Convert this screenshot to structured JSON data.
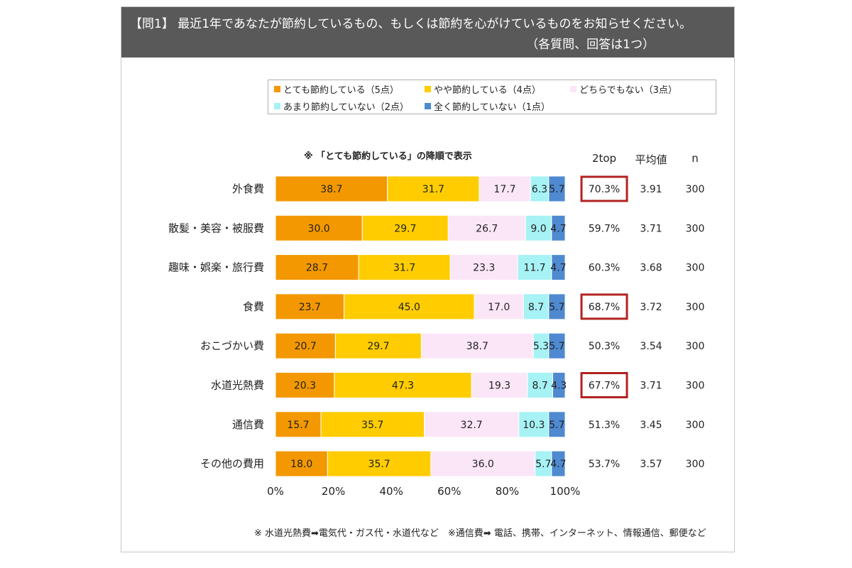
{
  "header": {
    "title_line1": "【問1】 最近1年であなたが節約しているもの、もしくは節約を心がけているものをお知らせください。",
    "title_line2": "（各質問、回答は1つ）"
  },
  "sort_note": "※ 「とても節約している」の降順で表示",
  "columns": {
    "two_top": "2top",
    "average": "平均値",
    "n": "n"
  },
  "footnote": "※ 水道光熱費➡電気代・ガス代・水道代など　※通信費➡ 電話、携帯、インターネット、情報通信、郵便など",
  "colors": {
    "s5": "#f39800",
    "s4": "#ffcc00",
    "s3": "#fbe6f7",
    "s2": "#a6f2f5",
    "s1": "#4f8ad1",
    "highlight_box": "#b22222"
  },
  "chart_data": {
    "type": "bar",
    "orientation": "horizontal",
    "stacked": "percent",
    "categories": [
      "外食費",
      "散髪・美容・被服費",
      "趣味・娯楽・旅行費",
      "食費",
      "おこづかい費",
      "水道光熱費",
      "通信費",
      "その他の費用"
    ],
    "series": [
      {
        "name": "とても節約している（5点）",
        "values": [
          38.7,
          30.0,
          28.7,
          23.7,
          20.7,
          20.3,
          15.7,
          18.0
        ],
        "labels": [
          "38.7",
          "30.0",
          "28.7",
          "23.7",
          "20.7",
          "20.3",
          "15.7",
          "18.0"
        ]
      },
      {
        "name": "やや節約している（4点）",
        "values": [
          31.7,
          29.7,
          31.7,
          45.0,
          29.7,
          47.3,
          35.7,
          35.7
        ],
        "labels": [
          "31.7",
          "29.7",
          "31.7",
          "45.0",
          "29.7",
          "47.3",
          "35.7",
          "35.7"
        ]
      },
      {
        "name": "どちらでもない（3点）",
        "values": [
          17.7,
          26.7,
          23.3,
          17.0,
          38.7,
          19.3,
          32.7,
          36.0
        ],
        "labels": [
          "17.7",
          "26.7",
          "23.3",
          "17.0",
          "38.7",
          "19.3",
          "32.7",
          "36.0"
        ]
      },
      {
        "name": "あまり節約していない（2点）",
        "values": [
          6.3,
          9.0,
          11.7,
          8.7,
          5.3,
          8.7,
          10.3,
          5.7
        ],
        "labels": [
          "6.3",
          "9.0",
          "11.7",
          "8.7",
          "5.3",
          "8.7",
          "10.3",
          "5.7"
        ]
      },
      {
        "name": "全く節約していない（1点）",
        "values": [
          5.7,
          4.7,
          4.7,
          5.7,
          5.7,
          4.3,
          5.7,
          4.7
        ],
        "labels": [
          "5.7",
          "4.7",
          "4.7",
          "5.7",
          "5.7",
          "4.3",
          "5.7",
          "4.7"
        ]
      }
    ],
    "two_top": [
      "70.3%",
      "59.7%",
      "60.3%",
      "68.7%",
      "50.3%",
      "67.7%",
      "51.3%",
      "53.7%"
    ],
    "highlighted_two_top": [
      "外食費",
      "食費",
      "水道光熱費"
    ],
    "average": [
      "3.91",
      "3.71",
      "3.68",
      "3.72",
      "3.54",
      "3.71",
      "3.45",
      "3.57"
    ],
    "n": [
      "300",
      "300",
      "300",
      "300",
      "300",
      "300",
      "300",
      "300"
    ],
    "x_ticks": [
      "0%",
      "20%",
      "40%",
      "60%",
      "80%",
      "100%"
    ],
    "xlim": [
      0,
      100
    ],
    "legend_position": "top",
    "grid": false
  }
}
